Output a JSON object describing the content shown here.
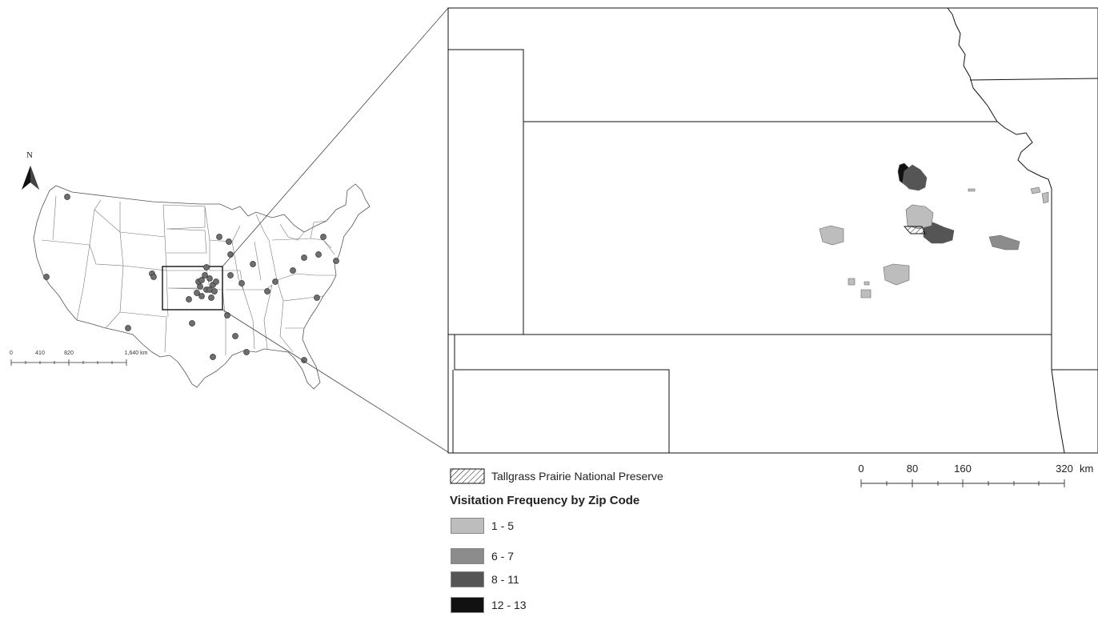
{
  "north_arrow": {
    "label": "N",
    "icon": "north-arrow-icon"
  },
  "overview_map": {
    "region": "Contiguous United States",
    "scale_bar": {
      "ticks": [
        "0",
        "410",
        "820",
        "1,640 km"
      ]
    }
  },
  "inset_map": {
    "region": "Kansas and surrounding states",
    "scale_bar": {
      "ticks": [
        "0",
        "80",
        "160",
        "320"
      ],
      "unit": "km"
    }
  },
  "legend": {
    "preserve_label": "Tallgrass Prairie National Preserve",
    "title": "Visitation Frequency by Zip Code",
    "classes": [
      {
        "range": "1 - 5",
        "color": "#bdbdbd"
      },
      {
        "range": "6 - 7",
        "color": "#8c8c8c"
      },
      {
        "range": "8 - 11",
        "color": "#555555"
      },
      {
        "range": "12 - 13",
        "color": "#111111"
      }
    ]
  },
  "colors": {
    "point_fill": "#6e6e6e",
    "outline": "#333333"
  }
}
